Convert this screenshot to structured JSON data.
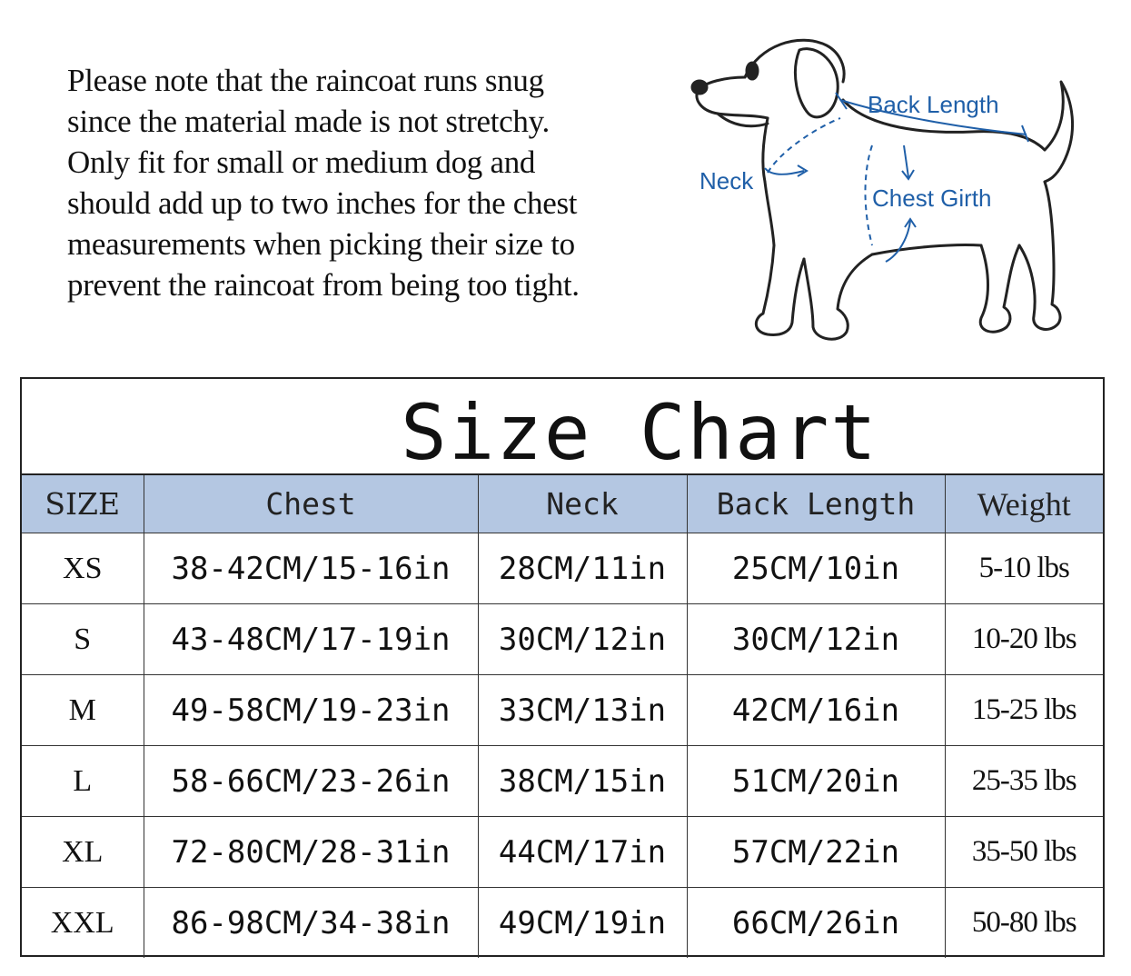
{
  "note": {
    "lines": [
      "Please note that the raincoat runs snug",
      "since the material made is not stretchy.",
      "Only fit for small or medium dog and",
      "should add up to two inches for the chest",
      "measurements when picking their size to",
      "prevent the raincoat from being too tight."
    ]
  },
  "diagram": {
    "back_length_label": "Back Length",
    "neck_label": "Neck",
    "chest_girth_label": "Chest Girth",
    "label_color": "#1f5fa8"
  },
  "size_chart": {
    "title": "Size Chart",
    "header_color": "#b4c7e2",
    "headers": [
      "SIZE",
      "Chest",
      "Neck",
      "Back Length",
      "Weight"
    ],
    "rows": [
      [
        "XS",
        "38-42CM/15-16in",
        "28CM/11in",
        "25CM/10in",
        "5-10 lbs"
      ],
      [
        "S",
        "43-48CM/17-19in",
        "30CM/12in",
        "30CM/12in",
        "10-20 lbs"
      ],
      [
        "M",
        "49-58CM/19-23in",
        "33CM/13in",
        "42CM/16in",
        "15-25 lbs"
      ],
      [
        "L",
        "58-66CM/23-26in",
        "38CM/15in",
        "51CM/20in",
        "25-35 lbs"
      ],
      [
        "XL",
        "72-80CM/28-31in",
        "44CM/17in",
        "57CM/22in",
        "35-50 lbs"
      ],
      [
        "XXL",
        "86-98CM/34-38in",
        "49CM/19in",
        "66CM/26in",
        "50-80 lbs"
      ]
    ]
  }
}
